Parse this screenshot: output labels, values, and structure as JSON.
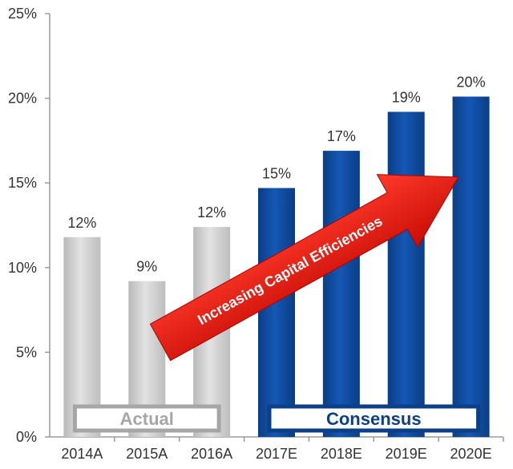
{
  "chart_data": {
    "type": "bar",
    "categories": [
      "2014A",
      "2015A",
      "2016A",
      "2017E",
      "2018E",
      "2019E",
      "2020E"
    ],
    "values": [
      11.8,
      9.2,
      12.4,
      14.7,
      16.9,
      19.2,
      20.1
    ],
    "data_labels": [
      "12%",
      "9%",
      "12%",
      "15%",
      "17%",
      "19%",
      "20%"
    ],
    "ylim": [
      0,
      25
    ],
    "y_ticks": [
      0,
      5,
      10,
      15,
      20,
      25
    ],
    "y_tick_labels": [
      "0%",
      "5%",
      "10%",
      "15%",
      "20%",
      "25%"
    ],
    "grid": false,
    "groups": [
      {
        "label": "Actual",
        "categories": [
          "2014A",
          "2015A",
          "2016A"
        ],
        "color": "#c8c8c8",
        "label_color": "#a6a6a6"
      },
      {
        "label": "Consensus",
        "categories": [
          "2017E",
          "2018E",
          "2019E",
          "2020E"
        ],
        "color": "#0b4a9c",
        "label_color": "#0b3f87"
      }
    ],
    "annotation": {
      "text": "Increasing Capital Efficiencies",
      "color": "#e8100b"
    }
  }
}
